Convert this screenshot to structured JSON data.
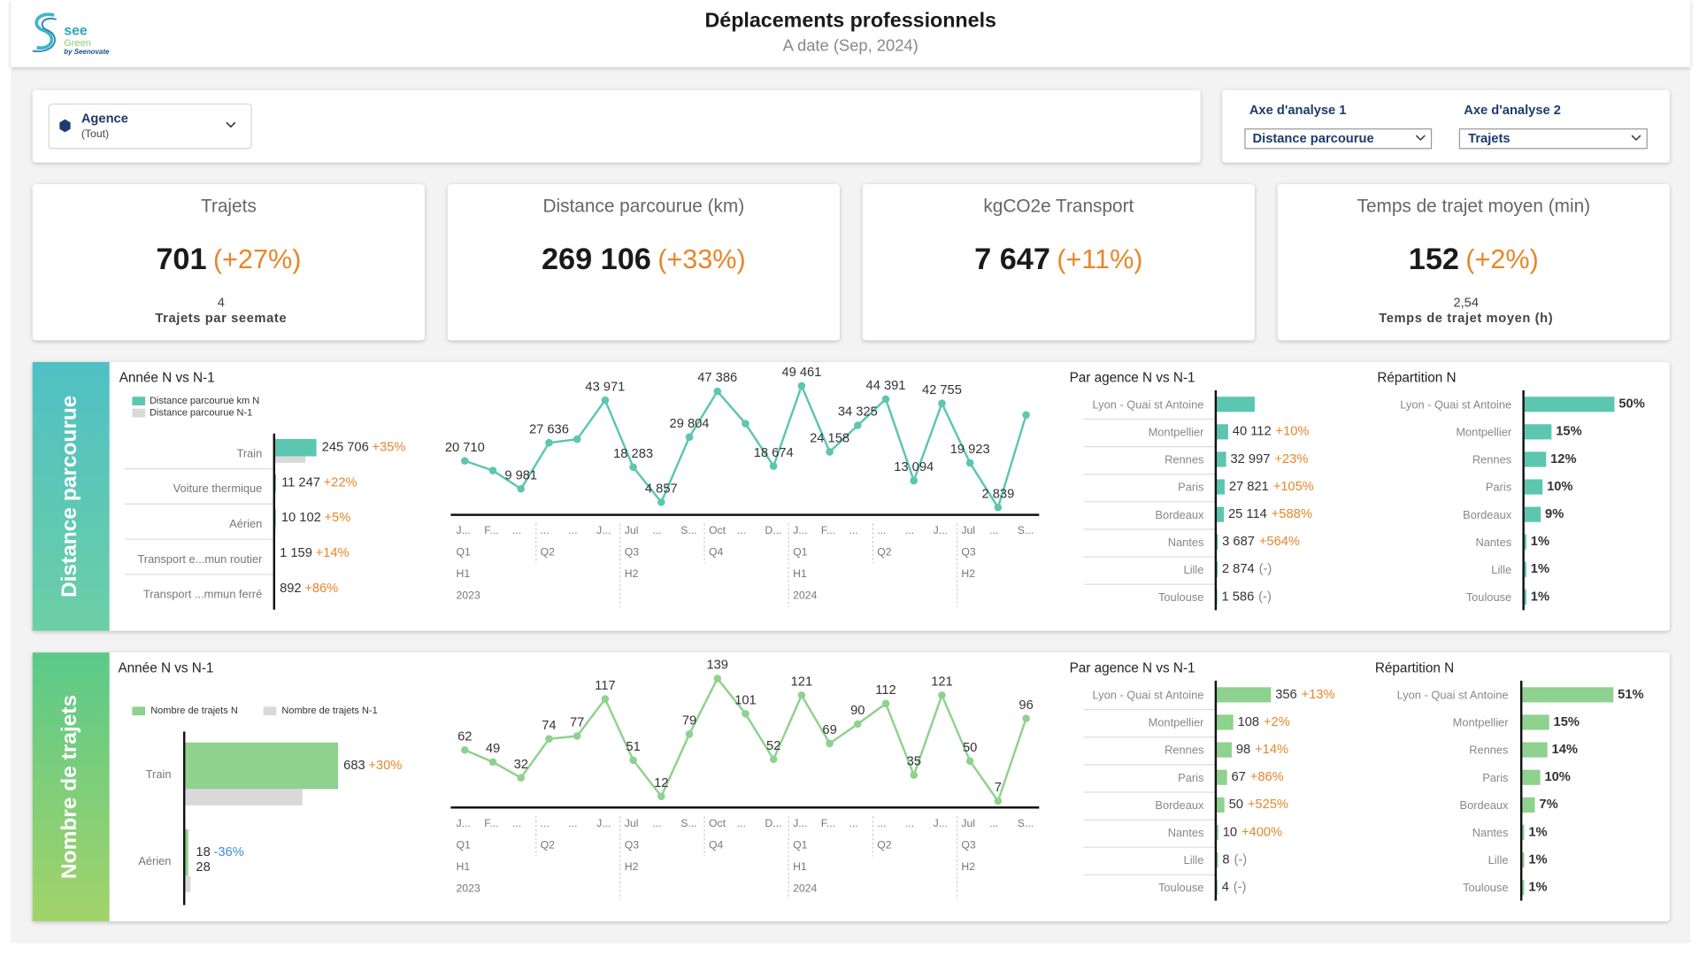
{
  "header": {
    "title": "Déplacements professionnels",
    "subtitle": "A date (Sep, 2024)",
    "logo": [
      "see",
      "Green",
      "by Seenovate"
    ]
  },
  "filters": {
    "agency": {
      "label": "Agence",
      "value": "(Tout)"
    },
    "axis1": {
      "label": "Axe d'analyse 1",
      "value": "Distance parcourue"
    },
    "axis2": {
      "label": "Axe d'analyse 2",
      "value": "Trajets"
    }
  },
  "kpis": [
    {
      "title": "Trajets",
      "value": "701",
      "change": "(+27%)",
      "sub_value": "4",
      "sub_label": "Trajets par seemate"
    },
    {
      "title": "Distance parcourue (km)",
      "value": "269 106",
      "change": "(+33%)"
    },
    {
      "title": "kgCO2e Transport",
      "value": "7 647",
      "change": "(+11%)"
    },
    {
      "title": "Temps de trajet moyen (min)",
      "value": "152",
      "change": "(+2%)",
      "sub_value": "2,54",
      "sub_label": "Temps de trajet moyen (h)"
    }
  ],
  "sections": [
    {
      "title": "Distance parcourue",
      "year_chart": {
        "type": "bar",
        "title": "Année N vs N-1",
        "categories": [
          "Train",
          "Voiture thermique",
          "Aérien",
          "Transport e...mun routier",
          "Transport ...mmun ferré"
        ],
        "series": [
          {
            "name": "Distance parcourue km N",
            "color": "#5cc6b0",
            "values": [
              245706,
              11247,
              10102,
              1159,
              892
            ],
            "value_labels": [
              "245 706",
              "11 247",
              "10 102",
              "1 159",
              "892"
            ]
          },
          {
            "name": "Distance parcourue N-1",
            "color": "#d9d9d9",
            "values": [
              182000,
              9200,
              9600,
              1020,
              480
            ]
          }
        ],
        "changes": [
          "+35%",
          "+22%",
          "+5%",
          "+14%",
          "+86%"
        ]
      },
      "line_chart": {
        "type": "line",
        "color": "#5cc6b0",
        "values": [
          20710,
          17000,
          9981,
          27636,
          29000,
          43971,
          18283,
          4857,
          29804,
          47386,
          35000,
          18674,
          49461,
          24158,
          34325,
          44391,
          13094,
          42755,
          19923,
          2839,
          38300
        ],
        "value_labels": [
          "20 710",
          null,
          "9 981",
          "27 636",
          null,
          "43 971",
          "18 283",
          "4 857",
          "29 804",
          "47 386",
          null,
          "18 674",
          "49 461",
          "24 158",
          "34 325",
          "44 391",
          "13 094",
          "42 755",
          "19 923",
          "2 839",
          null
        ],
        "months": [
          "J...",
          "F...",
          "...",
          "...",
          "...",
          "J...",
          "Jul",
          "...",
          "S...",
          "Oct",
          "...",
          "D...",
          "J...",
          "F...",
          "...",
          "...",
          "...",
          "J...",
          "Jul",
          "...",
          "S..."
        ],
        "quarters": [
          "Q1",
          "Q2",
          "Q3",
          "Q4",
          "Q1",
          "Q2",
          "Q3"
        ],
        "halves": [
          "H1",
          "H2",
          "H1",
          "H2"
        ],
        "years": [
          "2023",
          "2024"
        ]
      },
      "agency_chart": {
        "type": "bar",
        "title": "Par agence N vs N-1",
        "color": "#5cc6b0",
        "categories": [
          "Lyon - Quai st Antoine",
          "Montpellier",
          "Rennes",
          "Paris",
          "Bordeaux",
          "Nantes",
          "Lille",
          "Toulouse"
        ],
        "values": [
          134500,
          40112,
          32997,
          27821,
          25114,
          3687,
          2874,
          1586
        ],
        "value_labels": [
          null,
          "40 112",
          "32 997",
          "27 821",
          "25 114",
          "3 687",
          "2 874",
          "1 586"
        ],
        "changes": [
          null,
          "+10%",
          "+23%",
          "+105%",
          "+588%",
          "+564%",
          "(-)",
          "(-)"
        ]
      },
      "share_chart": {
        "type": "bar",
        "title": "Répartition N",
        "color": "#5cc6b0",
        "categories": [
          "Lyon - Quai st Antoine",
          "Montpellier",
          "Rennes",
          "Paris",
          "Bordeaux",
          "Nantes",
          "Lille",
          "Toulouse"
        ],
        "values": [
          50,
          15,
          12,
          10,
          9,
          1,
          1,
          1
        ],
        "value_labels": [
          "50%",
          "15%",
          "12%",
          "10%",
          "9%",
          "1%",
          "1%",
          "1%"
        ]
      }
    },
    {
      "title": "Nombre de trajets",
      "year_chart": {
        "type": "bar",
        "title": "Année N vs N-1",
        "categories": [
          "Train",
          "Aérien"
        ],
        "series": [
          {
            "name": "Nombre de trajets N",
            "color": "#8fd18e",
            "values": [
              683,
              18
            ]
          },
          {
            "name": "Nombre de trajets N-1",
            "color": "#d9d9d9",
            "values": [
              525,
              28
            ],
            "value_labels": [
              null,
              "28"
            ]
          }
        ],
        "changes": [
          "+30%",
          "-36%"
        ]
      },
      "line_chart": {
        "type": "line",
        "color": "#8fd18e",
        "values": [
          62,
          49,
          32,
          74,
          77,
          117,
          51,
          12,
          79,
          139,
          101,
          52,
          121,
          69,
          90,
          112,
          35,
          121,
          50,
          7,
          96
        ],
        "months": [
          "J...",
          "F...",
          "...",
          "...",
          "...",
          "J...",
          "Jul",
          "...",
          "S...",
          "Oct",
          "...",
          "D...",
          "J...",
          "F...",
          "...",
          "...",
          "...",
          "J...",
          "Jul",
          "...",
          "S..."
        ],
        "quarters": [
          "Q1",
          "Q2",
          "Q3",
          "Q4",
          "Q1",
          "Q2",
          "Q3"
        ],
        "halves": [
          "H1",
          "H2",
          "H1",
          "H2"
        ],
        "years": [
          "2023",
          "2024"
        ]
      },
      "agency_chart": {
        "type": "bar",
        "title": "Par agence N vs N-1",
        "color": "#8fd18e",
        "categories": [
          "Lyon - Quai st Antoine",
          "Montpellier",
          "Rennes",
          "Paris",
          "Bordeaux",
          "Nantes",
          "Lille",
          "Toulouse"
        ],
        "values": [
          356,
          108,
          98,
          67,
          50,
          10,
          8,
          4
        ],
        "changes": [
          "+13%",
          "+2%",
          "+14%",
          "+86%",
          "+525%",
          "+400%",
          "(-)",
          "(-)"
        ]
      },
      "share_chart": {
        "type": "bar",
        "title": "Répartition N",
        "color": "#8fd18e",
        "categories": [
          "Lyon - Quai st Antoine",
          "Montpellier",
          "Rennes",
          "Paris",
          "Bordeaux",
          "Nantes",
          "Lille",
          "Toulouse"
        ],
        "values": [
          51,
          15,
          14,
          10,
          7,
          1,
          1,
          1
        ],
        "value_labels": [
          "51%",
          "15%",
          "14%",
          "10%",
          "7%",
          "1%",
          "1%",
          "1%"
        ]
      }
    }
  ]
}
